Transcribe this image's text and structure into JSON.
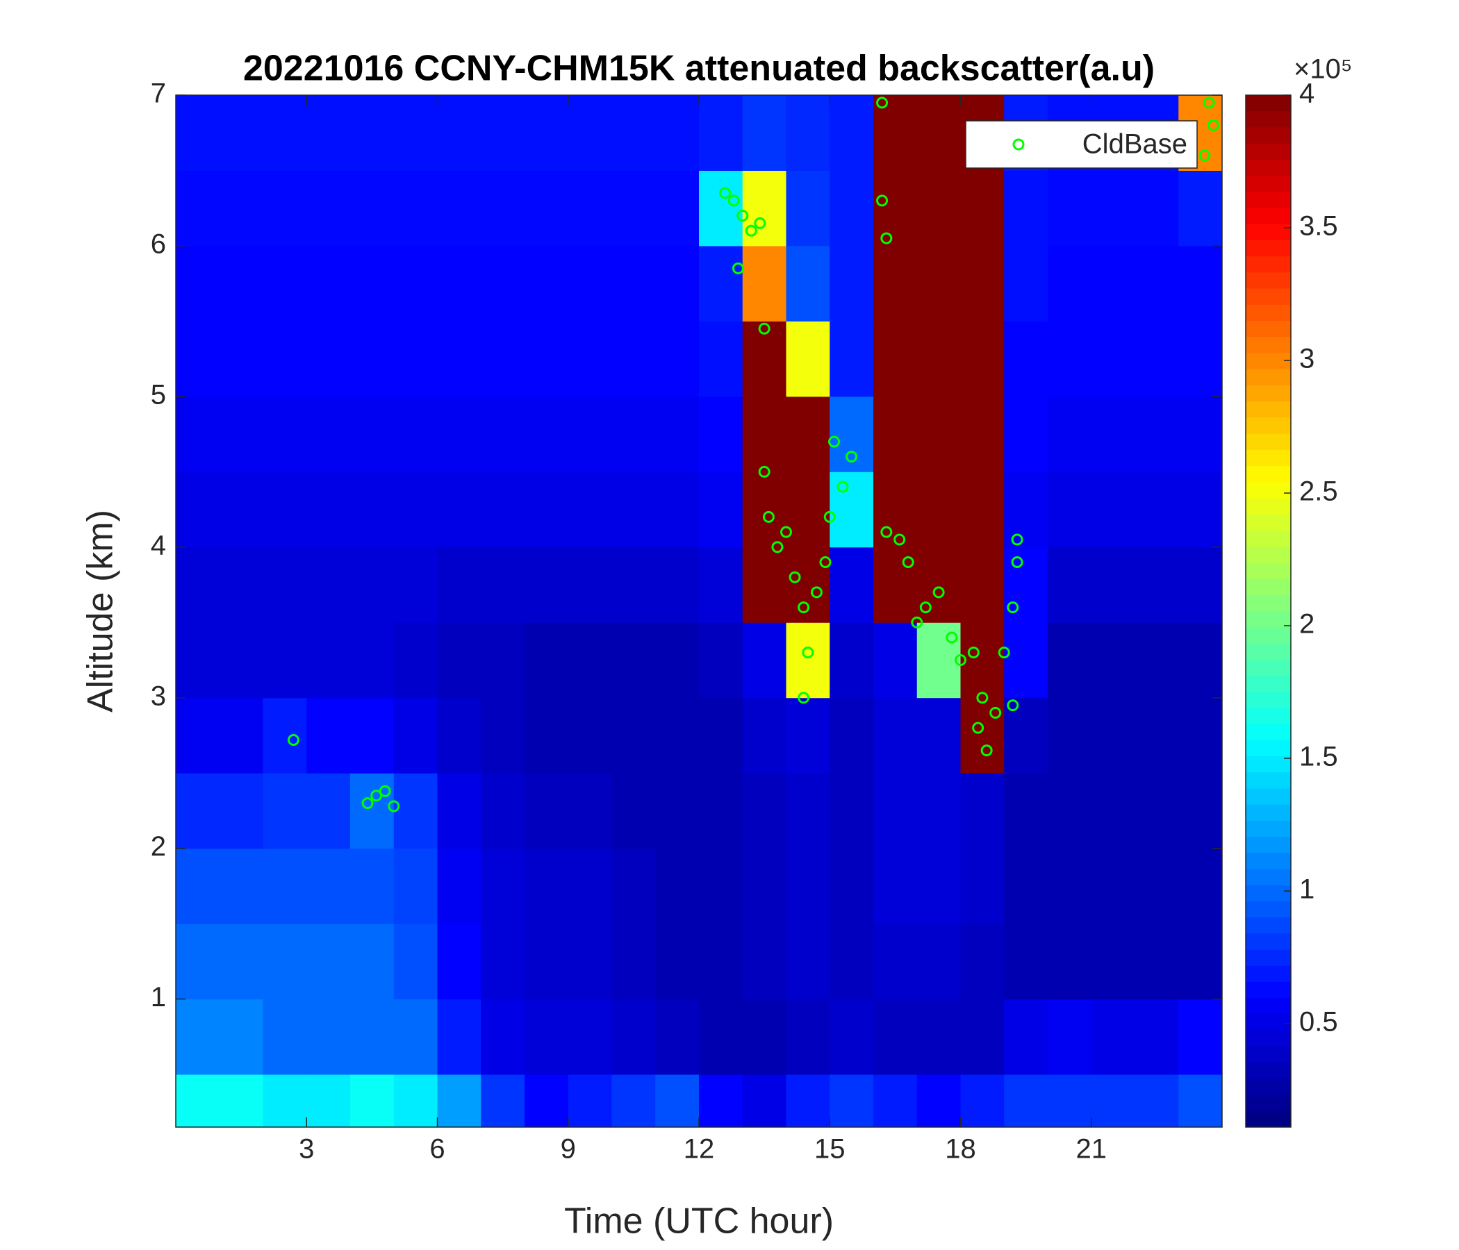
{
  "chart_data": {
    "type": "heatmap",
    "title": "20221016 CCNY-CHM15K attenuated backscatter(a.u)",
    "xlabel": "Time (UTC hour)",
    "ylabel": "Altitude (km)",
    "xlim": [
      0,
      24
    ],
    "ylim": [
      0.15,
      7
    ],
    "xticks": [
      3,
      6,
      9,
      12,
      15,
      18,
      21
    ],
    "yticks": [
      1,
      2,
      3,
      4,
      5,
      6,
      7
    ],
    "colormap": "jet",
    "clim": [
      0.11,
      4
    ],
    "cticks": [
      0.5,
      1,
      1.5,
      2,
      2.5,
      3,
      3.5,
      4
    ],
    "cscale_label": "×10⁵",
    "x": [
      0.5,
      1.5,
      2.5,
      3.5,
      4.5,
      5.5,
      6.5,
      7.5,
      8.5,
      9.5,
      10.5,
      11.5,
      12.5,
      13.5,
      14.5,
      15.5,
      16.5,
      17.5,
      18.5,
      19.5,
      20.5,
      21.5,
      22.5,
      23.5
    ],
    "y": [
      0.25,
      0.75,
      1.25,
      1.75,
      2.25,
      2.75,
      3.25,
      3.75,
      4.25,
      4.75,
      5.25,
      5.75,
      6.25,
      6.75
    ],
    "z": [
      [
        1.6,
        1.6,
        1.5,
        1.5,
        1.6,
        1.5,
        1.2,
        0.8,
        0.6,
        0.7,
        0.8,
        0.9,
        0.6,
        0.5,
        0.7,
        0.8,
        0.7,
        0.6,
        0.7,
        0.8,
        0.8,
        0.8,
        0.8,
        0.9
      ],
      [
        1.1,
        1.1,
        1.0,
        1.0,
        1.0,
        1.0,
        0.7,
        0.5,
        0.45,
        0.45,
        0.4,
        0.35,
        0.3,
        0.3,
        0.35,
        0.4,
        0.35,
        0.35,
        0.35,
        0.5,
        0.55,
        0.5,
        0.5,
        0.6
      ],
      [
        1.0,
        1.0,
        1.0,
        1.0,
        1.0,
        0.9,
        0.6,
        0.45,
        0.4,
        0.4,
        0.35,
        0.3,
        0.3,
        0.35,
        0.4,
        0.35,
        0.4,
        0.4,
        0.35,
        0.3,
        0.3,
        0.3,
        0.3,
        0.3
      ],
      [
        0.9,
        0.9,
        0.9,
        0.9,
        0.9,
        0.85,
        0.55,
        0.45,
        0.4,
        0.4,
        0.35,
        0.3,
        0.3,
        0.35,
        0.4,
        0.35,
        0.45,
        0.45,
        0.4,
        0.3,
        0.3,
        0.3,
        0.3,
        0.3
      ],
      [
        0.75,
        0.75,
        0.8,
        0.8,
        1.0,
        0.8,
        0.5,
        0.4,
        0.35,
        0.35,
        0.3,
        0.3,
        0.3,
        0.35,
        0.4,
        0.35,
        0.45,
        0.45,
        0.4,
        0.3,
        0.3,
        0.3,
        0.3,
        0.3
      ],
      [
        0.55,
        0.55,
        0.7,
        0.6,
        0.6,
        0.5,
        0.4,
        0.35,
        0.3,
        0.3,
        0.3,
        0.3,
        0.3,
        0.4,
        0.45,
        0.35,
        0.45,
        0.45,
        4,
        0.35,
        0.3,
        0.3,
        0.3,
        0.3
      ],
      [
        0.45,
        0.45,
        0.45,
        0.45,
        0.45,
        0.4,
        0.35,
        0.35,
        0.3,
        0.3,
        0.3,
        0.3,
        0.35,
        0.5,
        2.5,
        0.4,
        0.5,
        2.0,
        4,
        0.6,
        0.3,
        0.3,
        0.3,
        0.3
      ],
      [
        0.45,
        0.45,
        0.45,
        0.45,
        0.45,
        0.45,
        0.4,
        0.4,
        0.4,
        0.4,
        0.4,
        0.4,
        0.45,
        4,
        4,
        0.5,
        4,
        4,
        4,
        0.6,
        0.4,
        0.4,
        0.4,
        0.4
      ],
      [
        0.5,
        0.5,
        0.5,
        0.5,
        0.5,
        0.5,
        0.5,
        0.5,
        0.5,
        0.5,
        0.5,
        0.5,
        0.55,
        4,
        4,
        1.5,
        4,
        4,
        4,
        0.55,
        0.5,
        0.5,
        0.5,
        0.5
      ],
      [
        0.55,
        0.55,
        0.55,
        0.55,
        0.55,
        0.55,
        0.55,
        0.55,
        0.55,
        0.55,
        0.55,
        0.55,
        0.6,
        4,
        4,
        1.0,
        4,
        4,
        4,
        0.6,
        0.55,
        0.55,
        0.55,
        0.55
      ],
      [
        0.6,
        0.6,
        0.6,
        0.6,
        0.6,
        0.6,
        0.6,
        0.6,
        0.6,
        0.6,
        0.6,
        0.6,
        0.65,
        4,
        2.5,
        0.7,
        4,
        4,
        4,
        0.6,
        0.6,
        0.6,
        0.6,
        0.6
      ],
      [
        0.6,
        0.6,
        0.6,
        0.6,
        0.6,
        0.6,
        0.6,
        0.6,
        0.6,
        0.6,
        0.6,
        0.6,
        0.7,
        3,
        0.9,
        0.7,
        4,
        4,
        4,
        0.65,
        0.6,
        0.6,
        0.6,
        0.6
      ],
      [
        0.62,
        0.62,
        0.62,
        0.62,
        0.62,
        0.62,
        0.62,
        0.62,
        0.62,
        0.62,
        0.62,
        0.62,
        1.5,
        2.5,
        0.8,
        0.7,
        4,
        4,
        4,
        0.65,
        0.62,
        0.62,
        0.62,
        0.7
      ],
      [
        0.65,
        0.65,
        0.65,
        0.65,
        0.65,
        0.65,
        0.65,
        0.65,
        0.65,
        0.65,
        0.65,
        0.65,
        0.7,
        0.8,
        0.75,
        0.7,
        4,
        4,
        4,
        0.7,
        0.65,
        0.65,
        0.65,
        3
      ]
    ],
    "series": [
      {
        "name": "CldBase",
        "type": "scatter",
        "color": "#00ff00",
        "x": [
          2.7,
          4.4,
          4.6,
          4.8,
          5.0,
          12.6,
          12.8,
          13.0,
          13.2,
          13.4,
          12.9,
          13.5,
          13.5,
          13.6,
          13.8,
          14.0,
          14.2,
          14.4,
          14.5,
          14.4,
          14.7,
          14.9,
          15.0,
          15.1,
          15.3,
          15.5,
          16.2,
          16.2,
          16.3,
          16.3,
          16.6,
          16.8,
          17.0,
          17.2,
          17.5,
          17.8,
          18.0,
          18.3,
          18.5,
          18.4,
          18.6,
          18.8,
          19.0,
          19.2,
          19.3,
          19.3,
          19.2,
          23.6,
          23.8,
          23.7
        ],
        "values": [
          2.72,
          2.3,
          2.35,
          2.38,
          2.28,
          6.35,
          6.3,
          6.2,
          6.1,
          6.15,
          5.85,
          5.45,
          4.5,
          4.2,
          4.0,
          4.1,
          3.8,
          3.6,
          3.3,
          3.0,
          3.7,
          3.9,
          4.2,
          4.7,
          4.4,
          4.6,
          6.95,
          6.3,
          6.05,
          4.1,
          4.05,
          3.9,
          3.5,
          3.6,
          3.7,
          3.4,
          3.25,
          3.3,
          3.0,
          2.8,
          2.65,
          2.9,
          3.3,
          3.6,
          3.9,
          4.05,
          2.95,
          6.6,
          6.8,
          6.95
        ]
      }
    ],
    "legend": "northeast"
  }
}
